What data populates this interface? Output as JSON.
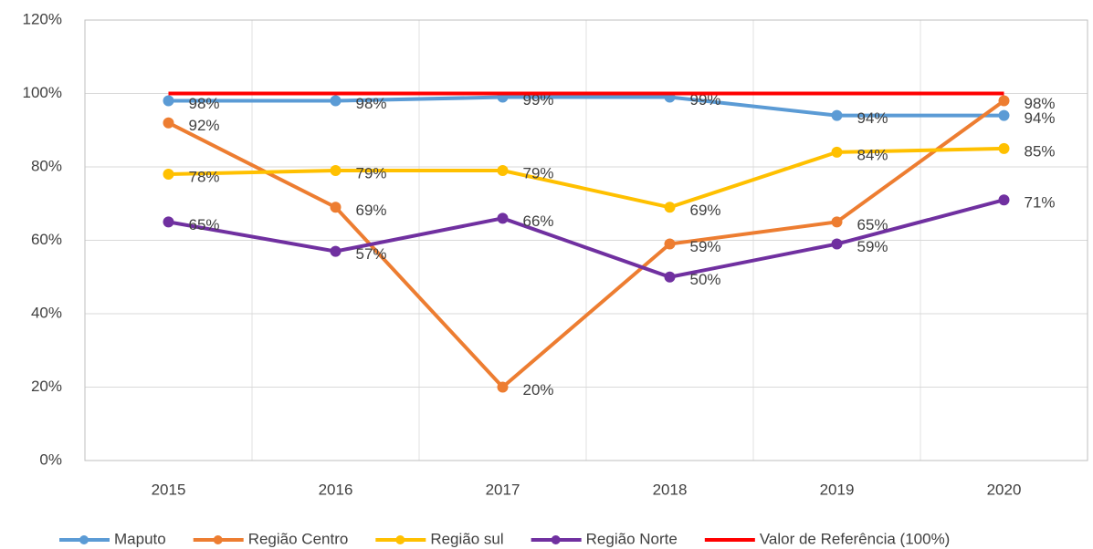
{
  "chart_data": {
    "type": "line",
    "categories": [
      "2015",
      "2016",
      "2017",
      "2018",
      "2019",
      "2020"
    ],
    "series": [
      {
        "name": "Maputo",
        "color": "#5b9bd5",
        "values": [
          98,
          98,
          99,
          99,
          94,
          94
        ],
        "value_labels": [
          "98%",
          "98%",
          "99%",
          "99%",
          "94%",
          "94%"
        ]
      },
      {
        "name": "Região Centro",
        "color": "#ed7d31",
        "values": [
          92,
          69,
          20,
          59,
          65,
          98
        ],
        "value_labels": [
          "92%",
          "69%",
          "20%",
          "59%",
          "65%",
          "98%"
        ]
      },
      {
        "name": "Região sul",
        "color": "#ffc000",
        "values": [
          78,
          79,
          79,
          69,
          84,
          85
        ],
        "value_labels": [
          "78%",
          "79%",
          "79%",
          "69%",
          "84%",
          "85%"
        ]
      },
      {
        "name": "Região Norte",
        "color": "#7030a0",
        "values": [
          65,
          57,
          66,
          50,
          59,
          71
        ],
        "value_labels": [
          "65%",
          "57%",
          "66%",
          "50%",
          "59%",
          "71%"
        ]
      },
      {
        "name": "Valor de Referência (100%)",
        "color": "#ff0000",
        "values": [
          100,
          100,
          100,
          100,
          100,
          100
        ],
        "markers": false
      }
    ],
    "ylim": [
      0,
      120
    ],
    "yticks": [
      {
        "value": 0,
        "label": "0%"
      },
      {
        "value": 20,
        "label": "20%"
      },
      {
        "value": 40,
        "label": "40%"
      },
      {
        "value": 60,
        "label": "60%"
      },
      {
        "value": 80,
        "label": "80%"
      },
      {
        "value": 100,
        "label": "100%"
      },
      {
        "value": 120,
        "label": "120%"
      }
    ],
    "grid": true,
    "legend": "bottom"
  }
}
